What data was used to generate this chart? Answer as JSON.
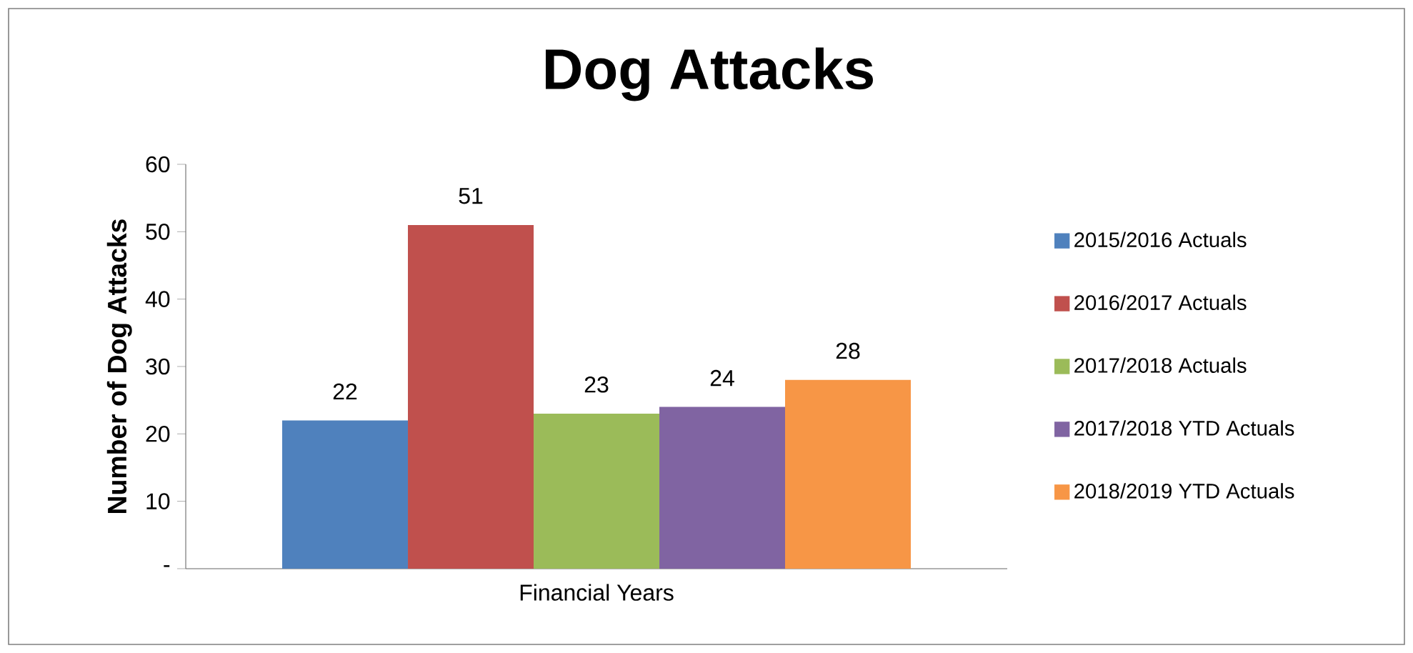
{
  "chart_data": {
    "type": "bar",
    "title": "Dog Attacks",
    "ylabel": "Number of Dog Attacks",
    "categories": [
      "Financial Years"
    ],
    "series": [
      {
        "name": "2015/2016 Actuals",
        "color": "#4f81bd",
        "values": [
          22
        ]
      },
      {
        "name": "2016/2017 Actuals",
        "color": "#c0504d",
        "values": [
          51
        ]
      },
      {
        "name": "2017/2018 Actuals",
        "color": "#9bbb59",
        "values": [
          23
        ]
      },
      {
        "name": "2017/2018 YTD Actuals",
        "color": "#8064a2",
        "values": [
          24
        ]
      },
      {
        "name": "2018/2019 YTD Actuals",
        "color": "#f79646",
        "values": [
          28
        ]
      }
    ],
    "ylim": [
      0,
      60
    ],
    "yticks": [
      {
        "value": 0,
        "label": "-"
      },
      10,
      20,
      30,
      40,
      50,
      60
    ],
    "data_labels": true,
    "legend": "right",
    "grid": false
  }
}
